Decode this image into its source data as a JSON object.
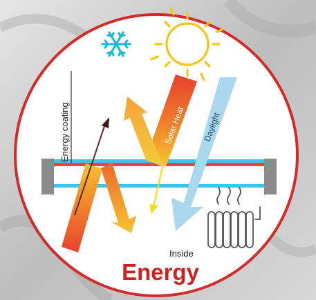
{
  "labels": {
    "energy_coating": "Energy coating",
    "solar_heat": "Solar Heat",
    "daylight": "Daylight",
    "inside": "Inside",
    "title": "Energy"
  },
  "icons": [
    "snowflake-icon",
    "sun-icon",
    "radiator-icon"
  ],
  "colors": {
    "ring": "#d42a2a",
    "title": "#cc2222",
    "coating_red": "#e8453c",
    "glass_blue": "#3fc3e8",
    "daylight_blue": "#a9d8ef",
    "sun_yellow": "#f5c518",
    "snowflake_teal": "#14b8e0",
    "frame_gray": "#8a8a8a"
  }
}
